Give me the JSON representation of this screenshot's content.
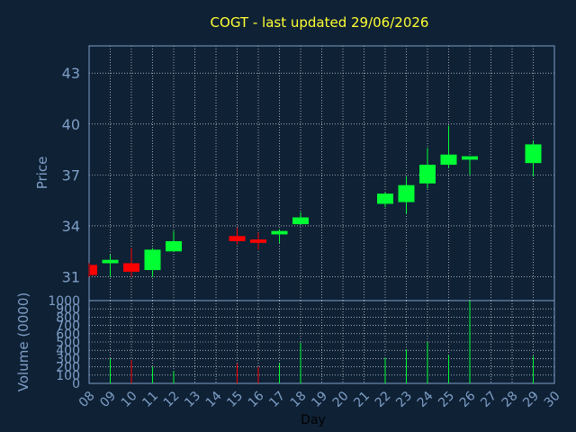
{
  "chart_data": {
    "type": "candlestick",
    "title": "COGT - last updated 29/06/2026",
    "ylabel": "Price",
    "volume_label": "Volume (0000)",
    "xlabel": "Day",
    "ylim": [
      29.6,
      44.6
    ],
    "volume_ylim": [
      0,
      1000
    ],
    "price_ticks": [
      31,
      34,
      37,
      40,
      43
    ],
    "volume_ticks": [
      0,
      100,
      200,
      300,
      400,
      500,
      600,
      700,
      800,
      900,
      1000
    ],
    "x_ticks": [
      "08",
      "09",
      "10",
      "11",
      "12",
      "13",
      "14",
      "15",
      "16",
      "17",
      "18",
      "19",
      "20",
      "21",
      "22",
      "23",
      "24",
      "25",
      "26",
      "27",
      "28",
      "29",
      "30"
    ],
    "colors": {
      "up": "#00ff33",
      "down": "#ff0000",
      "grid": "#ffffff",
      "frame": "#7e9fc7",
      "title": "#ffff33",
      "background": "#0f2135"
    },
    "candles": [
      {
        "day": 8,
        "open": 31.7,
        "high": 31.8,
        "low": 31.0,
        "close": 31.1,
        "volume": 0
      },
      {
        "day": 9,
        "open": 31.8,
        "high": 32.3,
        "low": 31.0,
        "close": 32.0,
        "volume": 300
      },
      {
        "day": 10,
        "open": 31.8,
        "high": 32.7,
        "low": 31.0,
        "close": 31.3,
        "volume": 280
      },
      {
        "day": 11,
        "open": 31.4,
        "high": 32.7,
        "low": 31.0,
        "close": 32.6,
        "volume": 200
      },
      {
        "day": 12,
        "open": 32.5,
        "high": 33.7,
        "low": 32.5,
        "close": 33.1,
        "volume": 150
      },
      {
        "day": 15,
        "open": 33.4,
        "high": 33.9,
        "low": 32.9,
        "close": 33.1,
        "volume": 240
      },
      {
        "day": 16,
        "open": 33.2,
        "high": 33.6,
        "low": 32.6,
        "close": 33.0,
        "volume": 200
      },
      {
        "day": 17,
        "open": 33.5,
        "high": 33.8,
        "low": 33.0,
        "close": 33.7,
        "volume": 240
      },
      {
        "day": 18,
        "open": 34.1,
        "high": 34.8,
        "low": 34.1,
        "close": 34.5,
        "volume": 490
      },
      {
        "day": 22,
        "open": 35.3,
        "high": 36.0,
        "low": 35.1,
        "close": 35.9,
        "volume": 310
      },
      {
        "day": 23,
        "open": 35.4,
        "high": 36.9,
        "low": 34.7,
        "close": 36.4,
        "volume": 410
      },
      {
        "day": 24,
        "open": 36.5,
        "high": 38.6,
        "low": 36.2,
        "close": 37.6,
        "volume": 500
      },
      {
        "day": 25,
        "open": 37.6,
        "high": 39.9,
        "low": 37.4,
        "close": 38.2,
        "volume": 340
      },
      {
        "day": 26,
        "open": 37.9,
        "high": 38.1,
        "low": 37.0,
        "close": 38.1,
        "volume": 1000
      },
      {
        "day": 29,
        "open": 37.7,
        "high": 39.0,
        "low": 36.9,
        "close": 38.8,
        "volume": 330
      }
    ]
  }
}
